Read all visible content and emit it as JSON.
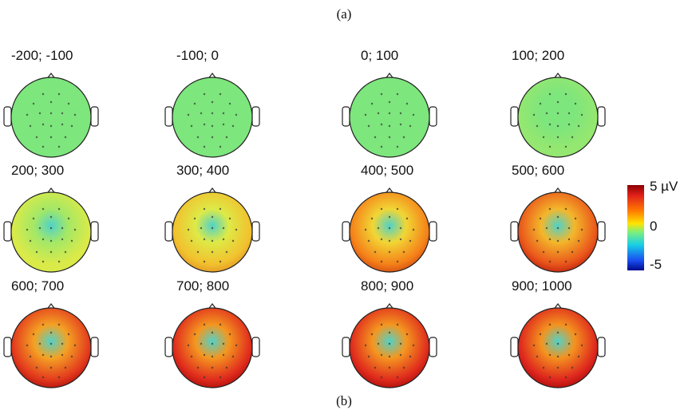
{
  "labels": {
    "top": "(a)",
    "bottom": "(b)"
  },
  "maps": [
    {
      "title": "-200; -100",
      "level": 0.0
    },
    {
      "title": "-100; 0",
      "level": 0.0
    },
    {
      "title": "0; 100",
      "level": 0.05
    },
    {
      "title": "100; 200",
      "level": 0.15
    },
    {
      "title": "200; 300",
      "level": 0.3
    },
    {
      "title": "300; 400",
      "level": 0.45
    },
    {
      "title": "400; 500",
      "level": 0.6
    },
    {
      "title": "500; 600",
      "level": 0.75
    },
    {
      "title": "600; 700",
      "level": 0.85
    },
    {
      "title": "700; 800",
      "level": 0.9
    },
    {
      "title": "800; 900",
      "level": 0.9
    },
    {
      "title": "900; 1000",
      "level": 0.92
    }
  ],
  "colorbar": {
    "max_label": "5 µV",
    "mid_label": "0",
    "min_label": "-5",
    "colors": [
      "#8b0000",
      "#e0201b",
      "#ff7a00",
      "#ffe300",
      "#7ff07a",
      "#18cfe6",
      "#1a4ff0",
      "#000a8f"
    ]
  }
}
